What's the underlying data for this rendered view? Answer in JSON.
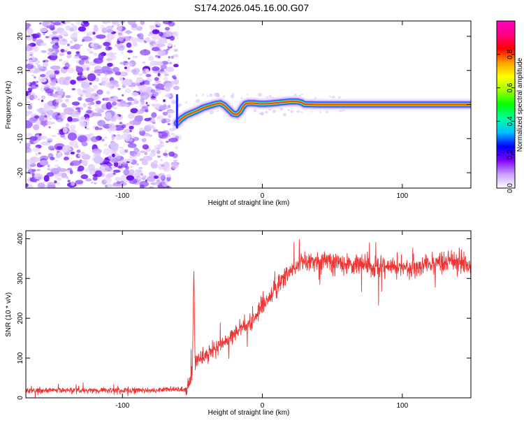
{
  "title": "S174.2026.045.16.00.G07",
  "chart_data": [
    {
      "type": "heatmap",
      "xlabel": "Height of straight line (km)",
      "ylabel": "Frequency (Hz)",
      "xlim": [
        -169,
        149
      ],
      "ylim": [
        -24.5,
        24.5
      ],
      "x_ticks": [
        -100,
        0,
        100
      ],
      "x_tick_labels": [
        "-100",
        "0",
        "100"
      ],
      "y_ticks": [
        -20,
        -10,
        0,
        10,
        20
      ],
      "y_tick_labels": [
        "-20",
        "-10",
        "0",
        "10",
        "20"
      ],
      "noise_region_x": [
        -169,
        -61
      ],
      "signal_track": {
        "x": [
          -61,
          -58,
          -54,
          -50,
          -46,
          -42,
          -38,
          -34,
          -30,
          -27,
          -24,
          -21,
          -18,
          -16,
          -14,
          -12,
          -10,
          -6,
          -2,
          2,
          6,
          10,
          15,
          20,
          25,
          28,
          30,
          40,
          60,
          80,
          100,
          120,
          149
        ],
        "y": [
          -5.5,
          -4.2,
          -3.1,
          -2.4,
          -1.7,
          -0.9,
          -0.4,
          0.1,
          0.4,
          -0.3,
          -1.5,
          -2.7,
          -2.9,
          -2.1,
          -0.7,
          0.2,
          0.4,
          0.4,
          0.2,
          0.2,
          0.3,
          0.5,
          0.7,
          0.9,
          0.9,
          0.6,
          0.1,
          0.0,
          0.0,
          0.0,
          0.0,
          0.0,
          0.0
        ]
      },
      "colorbar": {
        "label": "Normalized spectral amplitude",
        "range": [
          0,
          1
        ],
        "ticks": [
          0.0,
          0.2,
          0.4,
          0.6,
          0.8
        ],
        "tick_labels": [
          "0.0",
          "0.2",
          "0.4",
          "0.6",
          "0.8"
        ],
        "colors": [
          "#ffffff",
          "#c8a0ff",
          "#8000ff",
          "#0000ff",
          "#00c0ff",
          "#00ffa0",
          "#00ff00",
          "#a0ff00",
          "#ffff00",
          "#ffa000",
          "#ff0000",
          "#ff0080",
          "#ff00c0"
        ]
      }
    },
    {
      "type": "line",
      "xlabel": "Height of straight line (km)",
      "ylabel": "SNR (10 * v/v)",
      "xlim": [
        -169,
        149
      ],
      "ylim": [
        0,
        420
      ],
      "x_ticks": [
        -100,
        0,
        100
      ],
      "x_tick_labels": [
        "-100",
        "0",
        "100"
      ],
      "y_ticks": [
        0,
        100,
        200,
        300,
        400
      ],
      "y_tick_labels": [
        "0",
        "100",
        "200",
        "300",
        "400"
      ],
      "color": "#ee3333",
      "series": [
        {
          "name": "SNR",
          "x": [
            -169,
            -150,
            -130,
            -110,
            -90,
            -70,
            -55,
            -52,
            -50,
            -49,
            -48,
            -45,
            -40,
            -35,
            -30,
            -25,
            -20,
            -15,
            -10,
            -5,
            0,
            5,
            10,
            15,
            20,
            25,
            30,
            40,
            50,
            60,
            70,
            80,
            90,
            100,
            110,
            120,
            130,
            140,
            149
          ],
          "y": [
            18,
            19,
            18,
            19,
            19,
            20,
            22,
            30,
            70,
            330,
            85,
            95,
            110,
            120,
            135,
            145,
            160,
            175,
            185,
            205,
            225,
            250,
            275,
            300,
            320,
            335,
            345,
            345,
            340,
            340,
            335,
            330,
            330,
            325,
            330,
            335,
            345,
            345,
            330
          ],
          "noise": {
            "flat_region_end": -55,
            "flat_amplitude": 14,
            "rising_amplitude": 40,
            "plateau_amplitude": 50
          }
        }
      ]
    }
  ]
}
